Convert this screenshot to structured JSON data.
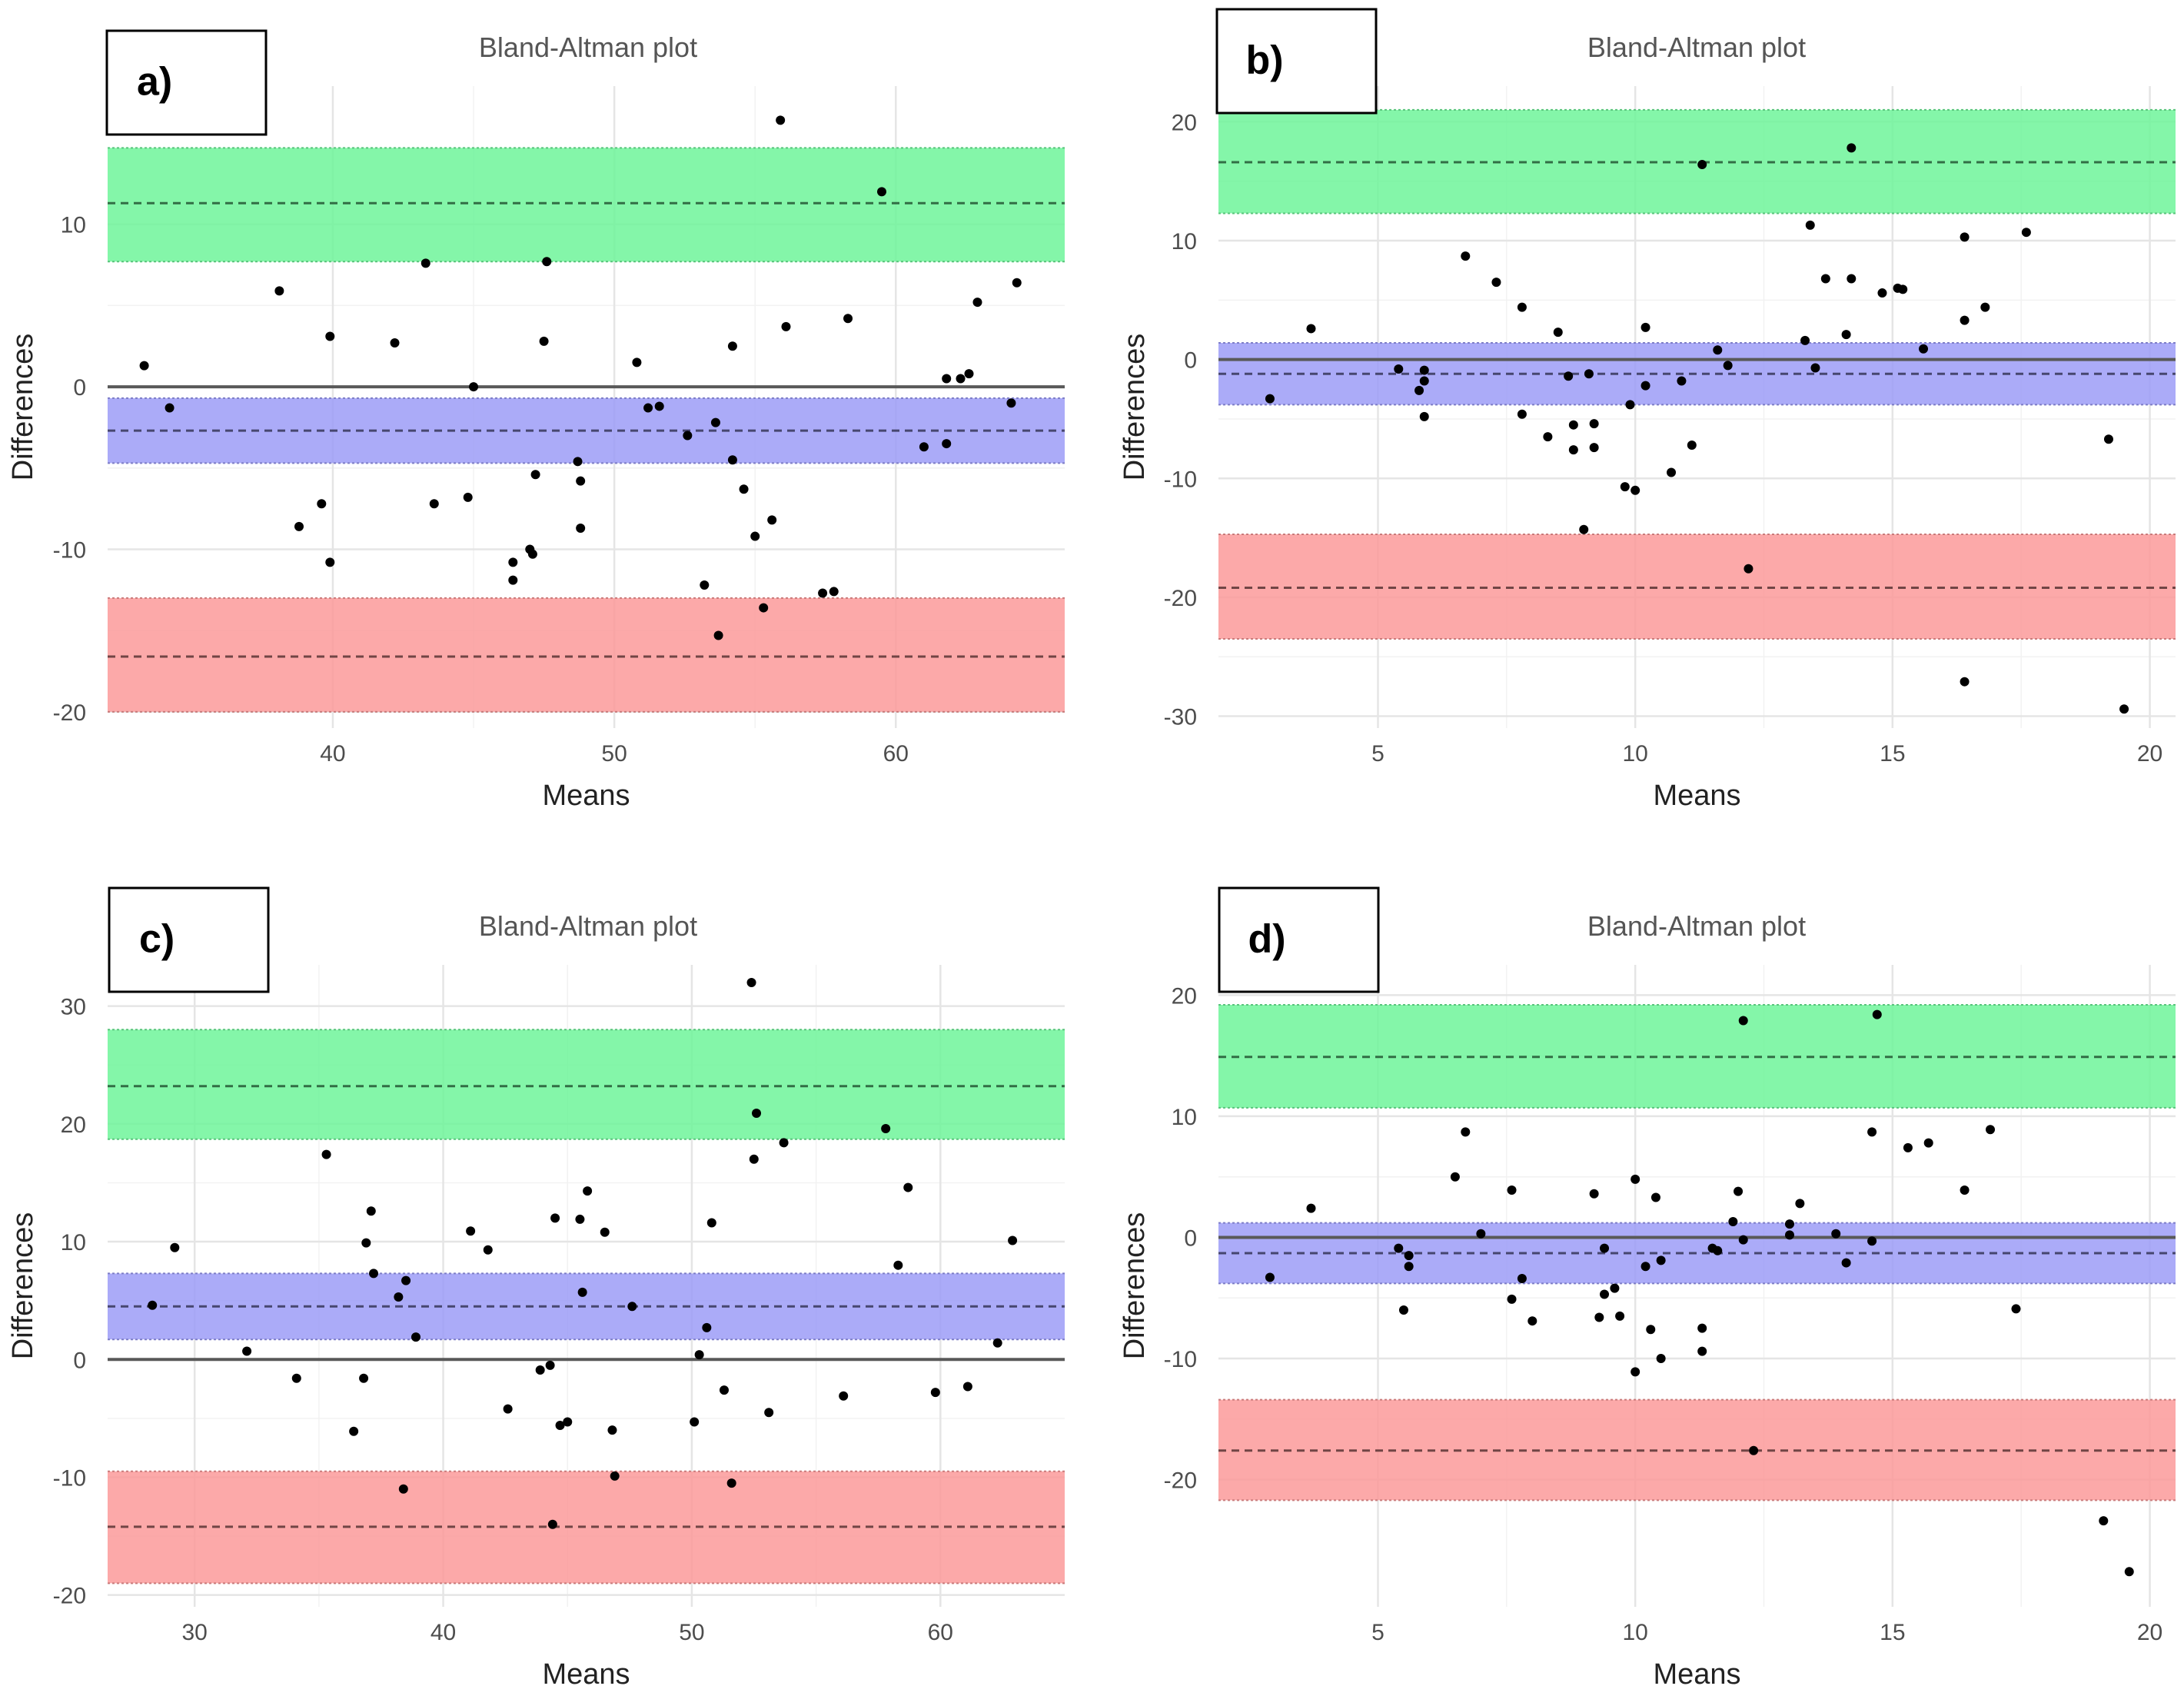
{
  "chart_data": [
    {
      "type": "scatter",
      "panel_label": "a)",
      "title": "Bland-Altman plot",
      "xlabel": "Means",
      "ylabel": "Differences",
      "xlim": [
        32,
        66
      ],
      "ylim": [
        -21,
        18.5
      ],
      "xticks": [
        40,
        50,
        60
      ],
      "xtick_labels": [
        "40",
        "50",
        "60"
      ],
      "yticks": [
        -20,
        -10,
        0,
        10
      ],
      "ytick_labels": [
        "-20",
        "-10",
        "0",
        "10"
      ],
      "zero_line": 0,
      "bands": [
        {
          "name": "upper limit of agreement",
          "color": "#6ef59a",
          "center": 11.3,
          "lower": 7.7,
          "upper": 14.7
        },
        {
          "name": "mean difference",
          "color": "#9c9cf7",
          "center": -2.7,
          "lower": -4.7,
          "upper": -0.7
        },
        {
          "name": "lower limit of agreement",
          "color": "#fb9a9a",
          "center": -16.6,
          "lower": -20.0,
          "upper": -13.0
        }
      ],
      "points": [
        [
          33.3,
          1.3
        ],
        [
          34.2,
          -1.3
        ],
        [
          38.1,
          5.9
        ],
        [
          38.8,
          -8.6
        ],
        [
          39.6,
          -7.2
        ],
        [
          39.9,
          3.1
        ],
        [
          39.9,
          -10.8
        ],
        [
          42.2,
          2.7
        ],
        [
          43.3,
          7.6
        ],
        [
          43.6,
          -7.2
        ],
        [
          44.8,
          -6.8
        ],
        [
          45.0,
          0.0
        ],
        [
          46.4,
          -10.8
        ],
        [
          46.4,
          -11.9
        ],
        [
          47.0,
          -10.0
        ],
        [
          47.1,
          -10.3
        ],
        [
          47.2,
          -5.4
        ],
        [
          47.5,
          2.8
        ],
        [
          47.6,
          7.7
        ],
        [
          48.7,
          -4.6
        ],
        [
          48.8,
          -5.8
        ],
        [
          48.8,
          -8.7
        ],
        [
          50.8,
          1.5
        ],
        [
          51.2,
          -1.3
        ],
        [
          51.6,
          -1.2
        ],
        [
          52.6,
          -3.0
        ],
        [
          53.2,
          -12.2
        ],
        [
          53.6,
          -2.2
        ],
        [
          53.7,
          -15.3
        ],
        [
          54.2,
          2.5
        ],
        [
          54.2,
          -4.5
        ],
        [
          54.6,
          -6.3
        ],
        [
          55.0,
          -9.2
        ],
        [
          55.3,
          -13.6
        ],
        [
          55.6,
          -8.2
        ],
        [
          55.9,
          16.4
        ],
        [
          56.1,
          3.7
        ],
        [
          57.4,
          -12.7
        ],
        [
          57.8,
          -12.6
        ],
        [
          58.3,
          4.2
        ],
        [
          59.5,
          12.0
        ],
        [
          61.0,
          -3.7
        ],
        [
          61.8,
          -3.5
        ],
        [
          61.8,
          0.5
        ],
        [
          62.3,
          0.5
        ],
        [
          62.6,
          0.8
        ],
        [
          62.9,
          5.2
        ],
        [
          64.1,
          -1.0
        ],
        [
          64.3,
          6.4
        ]
      ]
    },
    {
      "type": "scatter",
      "panel_label": "b)",
      "title": "Bland-Altman plot",
      "xlabel": "Means",
      "ylabel": "Differences",
      "xlim": [
        1.9,
        20.5
      ],
      "ylim": [
        -31,
        23
      ],
      "xticks": [
        5,
        10,
        15,
        20
      ],
      "xtick_labels": [
        "5",
        "10",
        "15",
        "20"
      ],
      "yticks": [
        -30,
        -20,
        -10,
        0,
        10,
        20
      ],
      "ytick_labels": [
        "-30",
        "-20",
        "-10",
        "0",
        "10",
        "20"
      ],
      "zero_line": 0,
      "bands": [
        {
          "name": "upper limit of agreement",
          "color": "#6ef59a",
          "center": 16.6,
          "lower": 12.3,
          "upper": 21.0
        },
        {
          "name": "mean difference",
          "color": "#9c9cf7",
          "center": -1.2,
          "lower": -3.8,
          "upper": 1.4
        },
        {
          "name": "lower limit of agreement",
          "color": "#fb9a9a",
          "center": -19.2,
          "lower": -23.5,
          "upper": -14.7
        }
      ],
      "points": [
        [
          2.9,
          -3.3
        ],
        [
          3.7,
          2.6
        ],
        [
          5.4,
          -0.8
        ],
        [
          5.8,
          -2.6
        ],
        [
          5.9,
          -1.8
        ],
        [
          5.9,
          -0.9
        ],
        [
          5.9,
          -4.8
        ],
        [
          6.7,
          8.7
        ],
        [
          7.3,
          6.5
        ],
        [
          7.8,
          4.4
        ],
        [
          7.8,
          -4.6
        ],
        [
          8.3,
          -6.5
        ],
        [
          8.5,
          2.3
        ],
        [
          8.7,
          -1.4
        ],
        [
          8.8,
          -5.5
        ],
        [
          8.8,
          -7.6
        ],
        [
          9.0,
          -14.3
        ],
        [
          9.1,
          -1.2
        ],
        [
          9.2,
          -5.4
        ],
        [
          9.2,
          -7.4
        ],
        [
          9.8,
          -10.7
        ],
        [
          9.9,
          -3.8
        ],
        [
          10.0,
          -11.0
        ],
        [
          10.2,
          2.7
        ],
        [
          10.2,
          -2.2
        ],
        [
          10.7,
          -9.5
        ],
        [
          10.9,
          -1.8
        ],
        [
          11.1,
          -7.2
        ],
        [
          11.3,
          16.4
        ],
        [
          11.6,
          0.8
        ],
        [
          11.8,
          -0.5
        ],
        [
          12.2,
          -17.6
        ],
        [
          13.3,
          1.6
        ],
        [
          13.4,
          11.3
        ],
        [
          13.5,
          -0.7
        ],
        [
          13.7,
          6.8
        ],
        [
          14.1,
          2.1
        ],
        [
          14.2,
          6.8
        ],
        [
          14.2,
          17.8
        ],
        [
          14.8,
          5.6
        ],
        [
          15.1,
          6.0
        ],
        [
          15.2,
          5.9
        ],
        [
          15.6,
          0.9
        ],
        [
          16.4,
          10.3
        ],
        [
          16.4,
          3.3
        ],
        [
          16.4,
          -27.1
        ],
        [
          16.8,
          4.4
        ],
        [
          17.6,
          10.7
        ],
        [
          19.2,
          -6.7
        ],
        [
          19.5,
          -29.4
        ]
      ]
    },
    {
      "type": "scatter",
      "panel_label": "c)",
      "title": "Bland-Altman plot",
      "xlabel": "Means",
      "ylabel": "Differences",
      "xlim": [
        26.5,
        65
      ],
      "ylim": [
        -21,
        33.5
      ],
      "xticks": [
        30,
        40,
        50,
        60
      ],
      "xtick_labels": [
        "30",
        "40",
        "50",
        "60"
      ],
      "yticks": [
        -20,
        -10,
        0,
        10,
        20,
        30
      ],
      "ytick_labels": [
        "-20",
        "-10",
        "0",
        "10",
        "20",
        "30"
      ],
      "zero_line": 0,
      "bands": [
        {
          "name": "upper limit of agreement",
          "color": "#6ef59a",
          "center": 23.2,
          "lower": 18.7,
          "upper": 28.0
        },
        {
          "name": "mean difference",
          "color": "#9c9cf7",
          "center": 4.5,
          "lower": 1.7,
          "upper": 7.3
        },
        {
          "name": "lower limit of agreement",
          "color": "#fb9a9a",
          "center": -14.2,
          "lower": -19.0,
          "upper": -9.5
        }
      ],
      "points": [
        [
          28.3,
          4.6
        ],
        [
          29.2,
          9.5
        ],
        [
          32.1,
          0.7
        ],
        [
          34.1,
          -1.6
        ],
        [
          35.3,
          17.4
        ],
        [
          36.4,
          -6.1
        ],
        [
          36.8,
          -1.6
        ],
        [
          36.9,
          9.9
        ],
        [
          37.1,
          12.6
        ],
        [
          37.2,
          7.3
        ],
        [
          38.2,
          5.3
        ],
        [
          38.4,
          -11.0
        ],
        [
          38.5,
          6.7
        ],
        [
          38.9,
          1.9
        ],
        [
          41.1,
          10.9
        ],
        [
          41.8,
          9.3
        ],
        [
          42.6,
          -4.2
        ],
        [
          43.9,
          -0.9
        ],
        [
          44.3,
          -0.5
        ],
        [
          44.4,
          -14.0
        ],
        [
          44.5,
          12.0
        ],
        [
          44.7,
          -5.6
        ],
        [
          45.0,
          -5.3
        ],
        [
          45.5,
          11.9
        ],
        [
          45.6,
          5.7
        ],
        [
          45.8,
          14.3
        ],
        [
          46.5,
          10.8
        ],
        [
          46.8,
          -6.0
        ],
        [
          46.9,
          -9.9
        ],
        [
          47.6,
          4.5
        ],
        [
          50.1,
          -5.3
        ],
        [
          50.3,
          0.4
        ],
        [
          50.6,
          2.7
        ],
        [
          50.8,
          11.6
        ],
        [
          51.3,
          -2.6
        ],
        [
          51.6,
          -10.5
        ],
        [
          52.4,
          32.0
        ],
        [
          52.5,
          17.0
        ],
        [
          52.6,
          20.9
        ],
        [
          53.1,
          -4.5
        ],
        [
          53.7,
          18.4
        ],
        [
          56.1,
          -3.1
        ],
        [
          57.8,
          19.6
        ],
        [
          58.3,
          8.0
        ],
        [
          58.7,
          14.6
        ],
        [
          59.8,
          -2.8
        ],
        [
          61.1,
          -2.3
        ],
        [
          62.3,
          1.4
        ],
        [
          62.9,
          10.1
        ]
      ]
    },
    {
      "type": "scatter",
      "panel_label": "d)",
      "title": "Bland-Altman plot",
      "xlabel": "Means",
      "ylabel": "Differences",
      "xlim": [
        1.9,
        20.5
      ],
      "ylim": [
        -30.5,
        22.5
      ],
      "xticks": [
        5,
        10,
        15,
        20
      ],
      "xtick_labels": [
        "5",
        "10",
        "15",
        "20"
      ],
      "yticks": [
        -20,
        -10,
        0,
        10,
        20
      ],
      "ytick_labels": [
        "-20",
        "-10",
        "0",
        "10",
        "20"
      ],
      "zero_line": 0,
      "bands": [
        {
          "name": "upper limit of agreement",
          "color": "#6ef59a",
          "center": 14.9,
          "lower": 10.7,
          "upper": 19.2
        },
        {
          "name": "mean difference",
          "color": "#9c9cf7",
          "center": -1.3,
          "lower": -3.8,
          "upper": 1.2
        },
        {
          "name": "lower limit of agreement",
          "color": "#fb9a9a",
          "center": -17.6,
          "lower": -21.7,
          "upper": -13.4
        }
      ],
      "points": [
        [
          2.9,
          -3.3
        ],
        [
          3.7,
          2.4
        ],
        [
          5.4,
          -0.9
        ],
        [
          5.5,
          -6.0
        ],
        [
          5.6,
          -1.5
        ],
        [
          5.6,
          -2.4
        ],
        [
          6.5,
          5.0
        ],
        [
          6.7,
          8.7
        ],
        [
          7.0,
          0.3
        ],
        [
          7.6,
          3.9
        ],
        [
          7.6,
          -5.1
        ],
        [
          7.8,
          -3.4
        ],
        [
          8.0,
          -6.9
        ],
        [
          9.2,
          3.6
        ],
        [
          9.3,
          -6.6
        ],
        [
          9.4,
          -0.9
        ],
        [
          9.4,
          -4.7
        ],
        [
          9.6,
          -4.2
        ],
        [
          9.7,
          -6.5
        ],
        [
          10.0,
          -11.1
        ],
        [
          10.0,
          4.8
        ],
        [
          10.2,
          -2.4
        ],
        [
          10.3,
          -7.6
        ],
        [
          10.4,
          3.3
        ],
        [
          10.5,
          -1.9
        ],
        [
          10.5,
          -10.0
        ],
        [
          11.3,
          -7.5
        ],
        [
          11.3,
          -9.4
        ],
        [
          11.5,
          -0.9
        ],
        [
          11.6,
          -1.1
        ],
        [
          11.9,
          1.3
        ],
        [
          12.0,
          3.8
        ],
        [
          12.1,
          17.9
        ],
        [
          12.1,
          -0.2
        ],
        [
          12.3,
          -17.6
        ],
        [
          13.0,
          1.1
        ],
        [
          13.0,
          0.2
        ],
        [
          13.2,
          2.8
        ],
        [
          13.9,
          0.3
        ],
        [
          14.1,
          -2.1
        ],
        [
          14.6,
          8.7
        ],
        [
          14.6,
          -0.3
        ],
        [
          14.7,
          18.4
        ],
        [
          15.3,
          7.4
        ],
        [
          15.7,
          7.8
        ],
        [
          16.4,
          3.9
        ],
        [
          16.9,
          8.9
        ],
        [
          17.4,
          -5.9
        ],
        [
          19.1,
          -23.4
        ],
        [
          19.6,
          -27.6
        ]
      ]
    }
  ]
}
